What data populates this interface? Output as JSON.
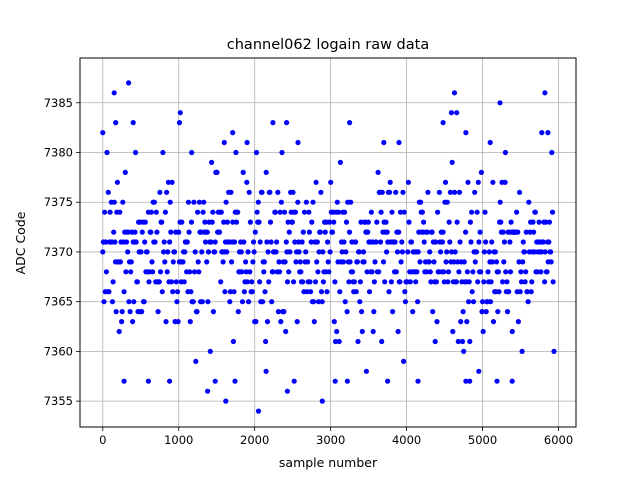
{
  "chart_data": {
    "type": "scatter",
    "title": "channel062 logain raw data",
    "xlabel": "sample number",
    "ylabel": "ADC Code",
    "xlim": [
      -300,
      6230
    ],
    "ylim": [
      7352.4,
      7389.5
    ],
    "x_ticks": [
      {
        "value": 0,
        "label": "0"
      },
      {
        "value": 1000,
        "label": "1000"
      },
      {
        "value": 2000,
        "label": "2000"
      },
      {
        "value": 3000,
        "label": "3000"
      },
      {
        "value": 4000,
        "label": "4000"
      },
      {
        "value": 5000,
        "label": "5000"
      },
      {
        "value": 6000,
        "label": "6000"
      }
    ],
    "y_ticks": [
      {
        "value": 7355,
        "label": "7355"
      },
      {
        "value": 7360,
        "label": "7360"
      },
      {
        "value": 7365,
        "label": "7365"
      },
      {
        "value": 7370,
        "label": "7370"
      },
      {
        "value": 7375,
        "label": "7375"
      },
      {
        "value": 7380,
        "label": "7380"
      },
      {
        "value": 7385,
        "label": "7385"
      }
    ],
    "grid": true,
    "marker_color": "#0000ff",
    "series": [
      {
        "x_range": [
          0,
          5929
        ],
        "dense_band": [
          7360,
          7380
        ],
        "points": [
          [
            0,
            7382
          ],
          [
            150,
            7386
          ],
          [
            340,
            7387
          ],
          [
            400,
            7383
          ],
          [
            1020,
            7384
          ],
          [
            1010,
            7383
          ],
          [
            2240,
            7383
          ],
          [
            2420,
            7383
          ],
          [
            3250,
            7383
          ],
          [
            4630,
            7386
          ],
          [
            4590,
            7384
          ],
          [
            4660,
            7384
          ],
          [
            4480,
            7383
          ],
          [
            5230,
            7385
          ],
          [
            5820,
            7386
          ],
          [
            5780,
            7382
          ],
          [
            5860,
            7382
          ],
          [
            170,
            7383
          ],
          [
            1170,
            7380
          ],
          [
            1710,
            7382
          ],
          [
            1600,
            7381
          ],
          [
            1900,
            7381
          ],
          [
            2570,
            7381
          ],
          [
            3700,
            7381
          ],
          [
            3900,
            7381
          ],
          [
            5100,
            7381
          ],
          [
            5300,
            7380
          ],
          [
            4780,
            7382
          ],
          [
            280,
            7357
          ],
          [
            600,
            7357
          ],
          [
            880,
            7357
          ],
          [
            1380,
            7356
          ],
          [
            1620,
            7355
          ],
          [
            1740,
            7357
          ],
          [
            2050,
            7354
          ],
          [
            2430,
            7356
          ],
          [
            2520,
            7357
          ],
          [
            2890,
            7355
          ],
          [
            3060,
            7357
          ],
          [
            3220,
            7357
          ],
          [
            3750,
            7357
          ],
          [
            4150,
            7357
          ],
          [
            4780,
            7357
          ],
          [
            4830,
            7357
          ],
          [
            5190,
            7357
          ],
          [
            5390,
            7357
          ],
          [
            5940,
            7360
          ],
          [
            1480,
            7357
          ],
          [
            2150,
            7358
          ],
          [
            3470,
            7358
          ],
          [
            4950,
            7358
          ]
        ]
      }
    ]
  }
}
